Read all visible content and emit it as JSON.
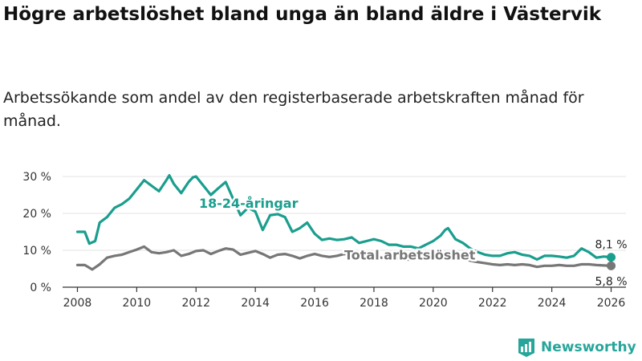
{
  "title": "Högre arbetslöshet bland unga än bland äldre i Västervik",
  "subtitle": "Arbetssökande som andel av den registerbaserade arbetskraften månad för månad.",
  "brand": {
    "name": "Newsworthy",
    "icon": "newsworthy-logo-icon"
  },
  "colors": {
    "youth": "#1a9e8e",
    "total": "#777777",
    "grid": "#e3e3e3",
    "axis": "#333333"
  },
  "chart_data": {
    "type": "line",
    "title": "Högre arbetslöshet bland unga än bland äldre i Västervik",
    "xlabel": "",
    "ylabel": "",
    "xlim": [
      2007.5,
      2026.5
    ],
    "ylim": [
      0,
      30
    ],
    "y_ticks": [
      0,
      10,
      20,
      30
    ],
    "y_tick_labels": [
      "0 %",
      "10 %",
      "20 %",
      "30 %"
    ],
    "x_ticks": [
      2008,
      2010,
      2012,
      2014,
      2016,
      2018,
      2020,
      2022,
      2024,
      2026
    ],
    "x_tick_labels": [
      "2008",
      "2010",
      "2012",
      "2014",
      "2016",
      "2018",
      "2020",
      "2022",
      "2024",
      "2026"
    ],
    "grid": true,
    "series": [
      {
        "name": "18-24-åringar",
        "color": "#1a9e8e",
        "end_label": "8,1 %",
        "end_value": 8.1,
        "x": [
          2008.0,
          2008.25,
          2008.4,
          2008.6,
          2008.75,
          2009.0,
          2009.25,
          2009.5,
          2009.75,
          2010.0,
          2010.25,
          2010.5,
          2010.75,
          2011.0,
          2011.1,
          2011.25,
          2011.5,
          2011.75,
          2011.9,
          2012.0,
          2012.25,
          2012.5,
          2012.75,
          2013.0,
          2013.25,
          2013.5,
          2013.75,
          2014.0,
          2014.25,
          2014.5,
          2014.75,
          2015.0,
          2015.25,
          2015.5,
          2015.75,
          2016.0,
          2016.25,
          2016.5,
          2016.75,
          2017.0,
          2017.25,
          2017.5,
          2017.75,
          2018.0,
          2018.25,
          2018.5,
          2018.75,
          2019.0,
          2019.25,
          2019.5,
          2019.75,
          2020.0,
          2020.25,
          2020.4,
          2020.5,
          2020.75,
          2021.0,
          2021.25,
          2021.5,
          2021.75,
          2022.0,
          2022.25,
          2022.5,
          2022.75,
          2023.0,
          2023.25,
          2023.5,
          2023.75,
          2024.0,
          2024.25,
          2024.5,
          2024.75,
          2025.0,
          2025.25,
          2025.5,
          2025.75,
          2026.0
        ],
        "values": [
          15.0,
          15.0,
          11.8,
          12.5,
          17.5,
          19.0,
          21.5,
          22.5,
          24.0,
          26.5,
          29.0,
          27.5,
          26.0,
          29.0,
          30.3,
          28.0,
          25.5,
          28.5,
          29.8,
          30.0,
          27.5,
          25.0,
          26.8,
          28.5,
          24.0,
          19.5,
          21.5,
          20.5,
          15.5,
          19.5,
          19.8,
          19.0,
          15.0,
          16.0,
          17.5,
          14.5,
          12.8,
          13.2,
          12.8,
          13.0,
          13.5,
          12.0,
          12.5,
          13.0,
          12.5,
          11.5,
          11.5,
          11.0,
          11.0,
          10.5,
          11.5,
          12.5,
          14.0,
          15.5,
          16.0,
          13.0,
          12.0,
          10.5,
          9.5,
          8.8,
          8.5,
          8.5,
          9.2,
          9.5,
          8.8,
          8.5,
          7.5,
          8.5,
          8.5,
          8.3,
          8.0,
          8.5,
          10.5,
          9.5,
          8.0,
          8.3,
          8.1
        ]
      },
      {
        "name": "Total arbetslöshet",
        "color": "#777777",
        "end_label": "5,8 %",
        "end_value": 5.8,
        "x": [
          2008.0,
          2008.25,
          2008.5,
          2008.75,
          2009.0,
          2009.25,
          2009.5,
          2009.75,
          2010.0,
          2010.25,
          2010.5,
          2010.75,
          2011.0,
          2011.25,
          2011.5,
          2011.75,
          2012.0,
          2012.25,
          2012.5,
          2012.75,
          2013.0,
          2013.25,
          2013.5,
          2013.75,
          2014.0,
          2014.25,
          2014.5,
          2014.75,
          2015.0,
          2015.25,
          2015.5,
          2015.75,
          2016.0,
          2016.25,
          2016.5,
          2016.75,
          2017.0,
          2017.25,
          2017.5,
          2017.75,
          2018.0,
          2018.25,
          2018.5,
          2018.75,
          2019.0,
          2019.25,
          2019.5,
          2019.75,
          2020.0,
          2020.25,
          2020.5,
          2020.75,
          2021.0,
          2021.25,
          2021.5,
          2021.75,
          2022.0,
          2022.25,
          2022.5,
          2022.75,
          2023.0,
          2023.25,
          2023.5,
          2023.75,
          2024.0,
          2024.25,
          2024.5,
          2024.75,
          2025.0,
          2025.25,
          2025.5,
          2025.75,
          2026.0
        ],
        "values": [
          6.0,
          6.0,
          4.8,
          6.2,
          8.0,
          8.5,
          8.8,
          9.5,
          10.2,
          11.0,
          9.5,
          9.2,
          9.5,
          10.0,
          8.5,
          9.0,
          9.8,
          10.0,
          9.0,
          9.8,
          10.5,
          10.2,
          8.8,
          9.3,
          9.8,
          9.0,
          8.0,
          8.8,
          9.0,
          8.5,
          7.8,
          8.5,
          9.0,
          8.5,
          8.2,
          8.5,
          9.0,
          8.8,
          8.2,
          8.5,
          8.2,
          8.0,
          7.8,
          7.8,
          7.5,
          7.5,
          7.8,
          8.0,
          8.5,
          8.8,
          8.5,
          8.0,
          7.8,
          7.2,
          6.8,
          6.5,
          6.2,
          6.0,
          6.2,
          6.0,
          6.2,
          6.0,
          5.5,
          5.8,
          5.8,
          6.0,
          5.8,
          5.8,
          6.2,
          6.2,
          6.0,
          5.9,
          5.8
        ]
      }
    ]
  }
}
